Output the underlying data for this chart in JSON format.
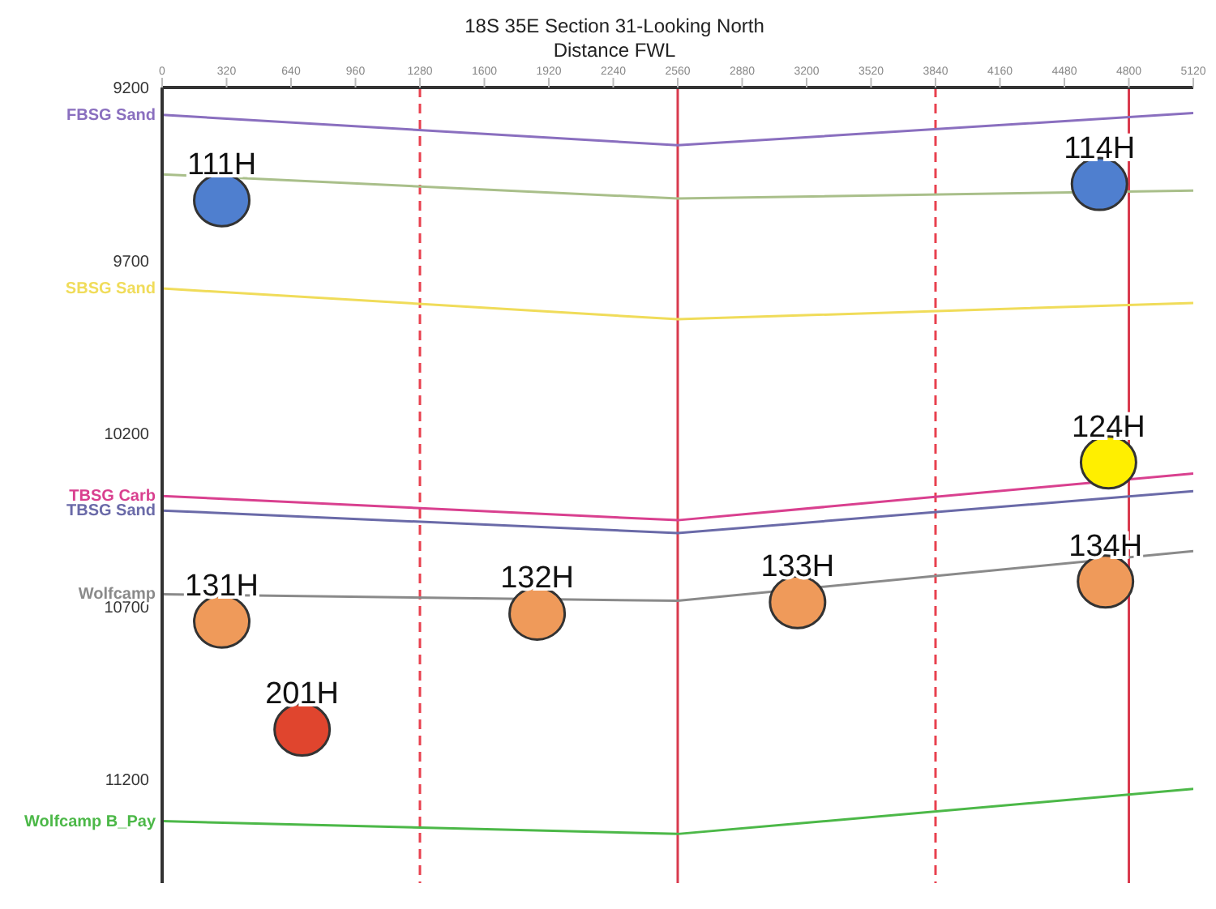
{
  "chart_data": {
    "type": "line",
    "title": "18S 35E Section 31-Looking North",
    "xlabel": "Distance FWL",
    "xlim": [
      0,
      5120
    ],
    "xticks": [
      0,
      320,
      640,
      960,
      1280,
      1600,
      1920,
      2240,
      2560,
      2880,
      3200,
      3520,
      3840,
      4160,
      4480,
      4800,
      5120
    ],
    "ylim": [
      11500,
      9200
    ],
    "yticks": [
      9200,
      9700,
      10200,
      10700,
      11200
    ],
    "grid": false,
    "legend": false,
    "marker": "circle",
    "line_style": "solid",
    "ref_lines": [
      {
        "axis": "x",
        "value": 1280,
        "color": "#e8414f",
        "line_style": "dashed"
      },
      {
        "axis": "x",
        "value": 2560,
        "color": "#d93b4e",
        "line_style": "solid"
      },
      {
        "axis": "x",
        "value": 3840,
        "color": "#e8414f",
        "line_style": "dashed"
      },
      {
        "axis": "x",
        "value": 4800,
        "color": "#d93b4e",
        "line_style": "solid"
      }
    ],
    "series": [
      {
        "name": "FBSG Sand",
        "marker": "none",
        "color": "#8a6fbf",
        "x": [
          0,
          2560,
          5120
        ],
        "values": [
          9279,
          9367,
          9274
        ]
      },
      {
        "marker": "none",
        "color": "#a9bf8a",
        "x": [
          0,
          2560,
          5120
        ],
        "values": [
          9451,
          9521,
          9498
        ]
      },
      {
        "name": "SBSG Sand",
        "marker": "none",
        "color": "#f0dc5a",
        "x": [
          0,
          2560,
          5120
        ],
        "values": [
          9781,
          9870,
          9823
        ]
      },
      {
        "name": "TBSG Carb",
        "marker": "none",
        "color": "#d9408f",
        "x": [
          0,
          2560,
          5120
        ],
        "values": [
          10381,
          10451,
          10316
        ]
      },
      {
        "name": "TBSG Sand",
        "marker": "none",
        "color": "#6a6aa8",
        "x": [
          0,
          2560,
          5120
        ],
        "values": [
          10423,
          10488,
          10367
        ]
      },
      {
        "name": "Wolfcamp",
        "marker": "none",
        "color": "#8a8a8a",
        "x": [
          0,
          2560,
          5120
        ],
        "values": [
          10665,
          10684,
          10540
        ]
      },
      {
        "name": "Wolfcamp B_Pay",
        "marker": "none",
        "color": "#4cb848",
        "x": [
          0,
          2560,
          5120
        ],
        "values": [
          11321,
          11358,
          11228
        ]
      },
      {
        "name": "111H",
        "type": "scatter",
        "color": "#4f7fcf",
        "x": [
          296
        ],
        "values": [
          9526
        ]
      },
      {
        "name": "114H",
        "type": "scatter",
        "color": "#4f7fcf",
        "x": [
          4654
        ],
        "values": [
          9479
        ]
      },
      {
        "name": "124H",
        "type": "scatter",
        "color": "#ffef00",
        "x": [
          4699
        ],
        "values": [
          10284
        ]
      },
      {
        "name": "131H",
        "type": "scatter",
        "color": "#ef9a5a",
        "x": [
          296
        ],
        "values": [
          10744
        ]
      },
      {
        "name": "132H",
        "type": "scatter",
        "color": "#ef9a5a",
        "x": [
          1862
        ],
        "values": [
          10721
        ]
      },
      {
        "name": "133H",
        "type": "scatter",
        "color": "#ef9a5a",
        "x": [
          3155
        ],
        "values": [
          10688
        ]
      },
      {
        "name": "134H",
        "type": "scatter",
        "color": "#ef9a5a",
        "x": [
          4684
        ],
        "values": [
          10628
        ]
      },
      {
        "name": "201H",
        "type": "scatter",
        "color": "#e0452e",
        "x": [
          695
        ],
        "values": [
          11056
        ]
      }
    ]
  }
}
